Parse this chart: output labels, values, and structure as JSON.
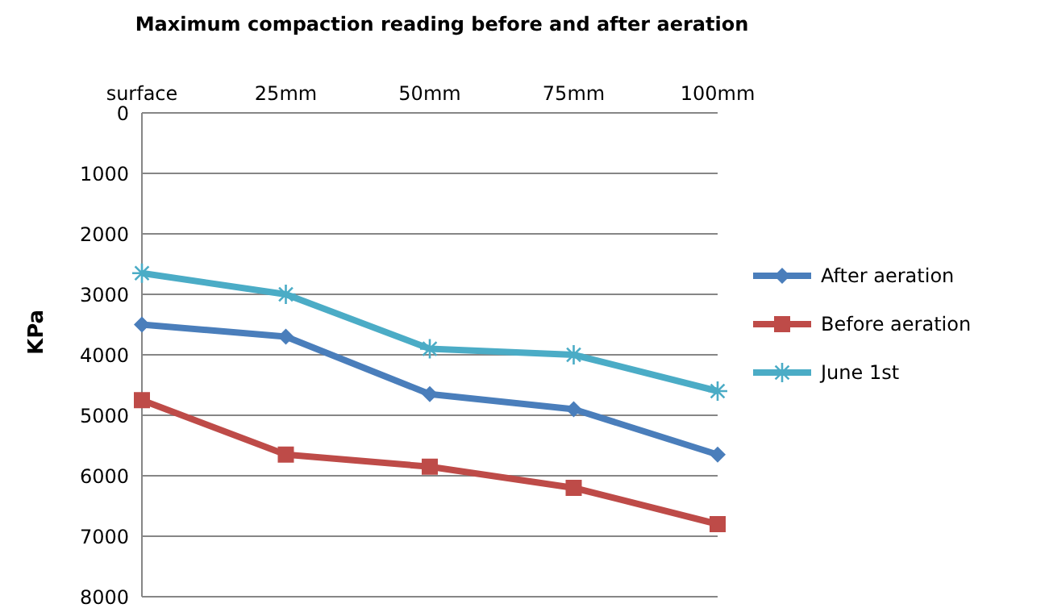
{
  "chart_data": {
    "type": "line",
    "title": "Maximum compaction  reading before and after aeration",
    "ylabel": "KPa",
    "categories": [
      "surface",
      "25mm",
      "50mm",
      "75mm",
      "100mm"
    ],
    "series": [
      {
        "name": "After aeration",
        "color": "#4a7ebb",
        "marker": "diamond",
        "values": [
          3500,
          3700,
          4650,
          4900,
          5650
        ]
      },
      {
        "name": "Before aeration",
        "color": "#be4b48",
        "marker": "square",
        "values": [
          4750,
          5650,
          5850,
          6200,
          6800
        ]
      },
      {
        "name": "June 1st",
        "color": "#4bacc6",
        "marker": "cross",
        "values": [
          2650,
          3000,
          3900,
          4000,
          4600
        ]
      }
    ],
    "ylim": [
      8000,
      0
    ],
    "yticks": [
      0,
      1000,
      2000,
      3000,
      4000,
      5000,
      6000,
      7000,
      8000
    ],
    "grid": "y",
    "legend": "right"
  }
}
